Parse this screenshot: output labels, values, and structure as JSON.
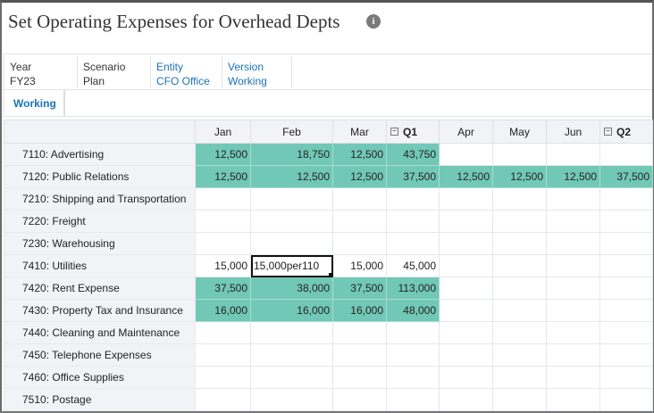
{
  "title": "Set Operating Expenses for Overhead Depts",
  "pov": [
    {
      "label": "Year",
      "value": "FY23",
      "link": false
    },
    {
      "label": "Scenario",
      "value": "Plan",
      "link": false
    },
    {
      "label": "Entity",
      "value": "CFO Office",
      "link": true
    },
    {
      "label": "Version",
      "value": "Working",
      "link": true
    }
  ],
  "tab": "Working",
  "columns": [
    {
      "label": "Jan",
      "total": false
    },
    {
      "label": "Feb",
      "total": false
    },
    {
      "label": "Mar",
      "total": false
    },
    {
      "label": "Q1",
      "total": true
    },
    {
      "label": "Apr",
      "total": false
    },
    {
      "label": "May",
      "total": false
    },
    {
      "label": "Jun",
      "total": false
    },
    {
      "label": "Q2",
      "total": true
    }
  ],
  "highlight_color": "#72c8b6",
  "rows": [
    {
      "label": "7110: Advertising",
      "cells": [
        "12,500",
        "18,750",
        "12,500",
        "43,750",
        "",
        "",
        "",
        ""
      ],
      "green": [
        0,
        1,
        2,
        3
      ]
    },
    {
      "label": "7120: Public Relations",
      "cells": [
        "12,500",
        "12,500",
        "12,500",
        "37,500",
        "12,500",
        "12,500",
        "12,500",
        "37,500"
      ],
      "green": [
        0,
        1,
        2,
        3,
        4,
        5,
        6,
        7
      ]
    },
    {
      "label": "7210: Shipping and Transportation",
      "cells": [
        "",
        "",
        "",
        "",
        "",
        "",
        "",
        ""
      ],
      "green": []
    },
    {
      "label": "7220: Freight",
      "cells": [
        "",
        "",
        "",
        "",
        "",
        "",
        "",
        ""
      ],
      "green": []
    },
    {
      "label": "7230: Warehousing",
      "cells": [
        "",
        "",
        "",
        "",
        "",
        "",
        "",
        ""
      ],
      "green": []
    },
    {
      "label": "7410: Utilities",
      "cells": [
        "15,000",
        "15,000per110",
        "15,000",
        "45,000",
        "",
        "",
        "",
        ""
      ],
      "green": [],
      "selected": 1
    },
    {
      "label": "7420: Rent Expense",
      "cells": [
        "37,500",
        "38,000",
        "37,500",
        "113,000",
        "",
        "",
        "",
        ""
      ],
      "green": [
        0,
        1,
        2,
        3
      ]
    },
    {
      "label": "7430: Property Tax and Insurance",
      "cells": [
        "16,000",
        "16,000",
        "16,000",
        "48,000",
        "",
        "",
        "",
        ""
      ],
      "green": [
        0,
        1,
        2,
        3
      ]
    },
    {
      "label": "7440: Cleaning and Maintenance",
      "cells": [
        "",
        "",
        "",
        "",
        "",
        "",
        "",
        ""
      ],
      "green": []
    },
    {
      "label": "7450: Telephone Expenses",
      "cells": [
        "",
        "",
        "",
        "",
        "",
        "",
        "",
        ""
      ],
      "green": []
    },
    {
      "label": "7460: Office Supplies",
      "cells": [
        "",
        "",
        "",
        "",
        "",
        "",
        "",
        ""
      ],
      "green": []
    },
    {
      "label": "7510: Postage",
      "cells": [
        "",
        "",
        "",
        "",
        "",
        "",
        "",
        ""
      ],
      "green": []
    }
  ]
}
